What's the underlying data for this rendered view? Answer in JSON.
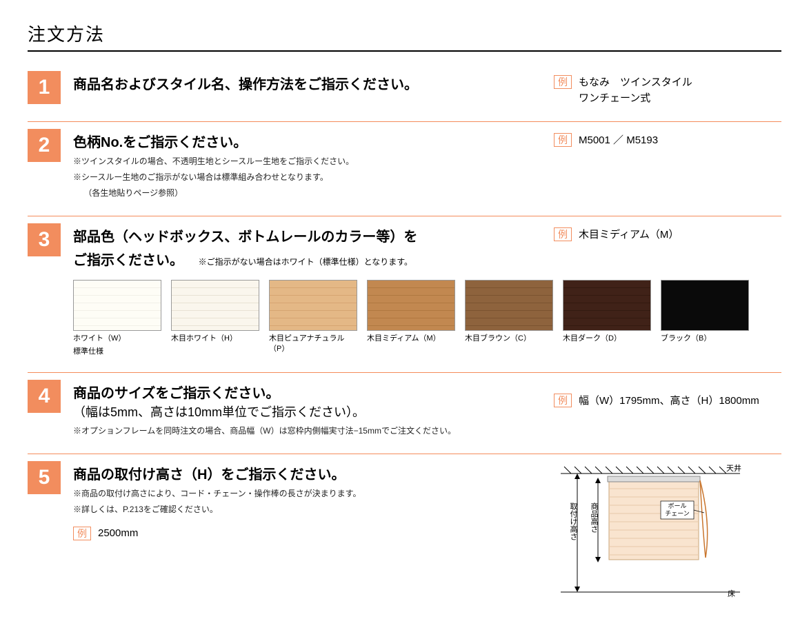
{
  "page_title": "注文方法",
  "example_label": "例",
  "steps": {
    "s1": {
      "num": "1",
      "title": "商品名およびスタイル名、操作方法をご指示ください。",
      "example": "もなみ　ツインスタイル\nワンチェーン式"
    },
    "s2": {
      "num": "2",
      "title": "色柄No.をご指示ください。",
      "notes": [
        "※ツインスタイルの場合、不透明生地とシースルー生地をご指示ください。",
        "※シースルー生地のご指示がない場合は標準組み合わせとなります。",
        "　 （各生地貼りページ参照）"
      ],
      "example": "M5001 ／ M5193"
    },
    "s3": {
      "num": "3",
      "title_line1": "部品色（ヘッドボックス、ボトムレールのカラー等）を",
      "title_line2": "ご指示ください。",
      "note_inline": "※ご指示がない場合はホワイト（標準仕様）となります。",
      "example": "木目ミディアム（M）",
      "swatches": [
        {
          "label": "ホワイト（W）",
          "sublabel": "標準仕様",
          "bg": "#fefdf6",
          "grain": "#f2f0e8"
        },
        {
          "label": "木目ホワイト（H）",
          "sublabel": "",
          "bg": "#faf6ed",
          "grain": "#e8e2d4"
        },
        {
          "label": "木目ピュアナチュラル（P）",
          "sublabel": "",
          "bg": "#e4b886",
          "grain": "#d6a572"
        },
        {
          "label": "木目ミディアム（M）",
          "sublabel": "",
          "bg": "#c28850",
          "grain": "#b07840"
        },
        {
          "label": "木目ブラウン（C）",
          "sublabel": "",
          "bg": "#8e633d",
          "grain": "#7b5330"
        },
        {
          "label": "木目ダーク（D）",
          "sublabel": "",
          "bg": "#402218",
          "grain": "#331a10"
        },
        {
          "label": "ブラック（B）",
          "sublabel": "",
          "bg": "#0a0a0a",
          "grain": "#0a0a0a"
        }
      ]
    },
    "s4": {
      "num": "4",
      "title": "商品のサイズをご指示ください。",
      "subtitle": "（幅は5mm、高さは10mm単位でご指示ください）。",
      "note": "※オプションフレームを同時注文の場合、商品幅（W）は窓枠内側幅実寸法−15mmでご注文ください。",
      "example": "幅（W）1795mm、高さ（H）1800mm"
    },
    "s5": {
      "num": "5",
      "title": "商品の取付け高さ（H）をご指示ください。",
      "notes": [
        "※商品の取付け高さにより、コード・チェーン・操作棒の長さが決まります。",
        "※詳しくは、P.213をご確認ください。"
      ],
      "example": "2500mm",
      "diagram": {
        "ceiling_label": "天井",
        "floor_label": "床",
        "label_install_height": "取付け高さ",
        "label_product_height": "商品高さ",
        "label_chain": "ボール\nチェーン",
        "blind_color": "#f9e4cf",
        "blind_line": "#e8c9a8",
        "chain_color": "#c9762e"
      }
    }
  },
  "colors": {
    "accent": "#f28d5e",
    "divider": "#f58b5a"
  }
}
